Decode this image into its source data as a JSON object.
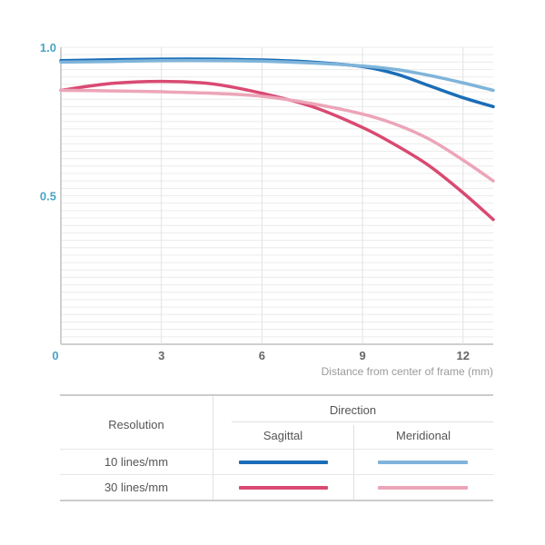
{
  "chart_data": {
    "type": "line",
    "xlabel": "Distance from center of frame (mm)",
    "ylabel": "",
    "xlim": [
      0,
      12.9
    ],
    "ylim": [
      0,
      1.0
    ],
    "x_ticks": [
      "0",
      "3",
      "6",
      "9",
      "12"
    ],
    "y_ticks": [
      "0.5",
      "1.0"
    ],
    "grid": "horizontal",
    "series": [
      {
        "id": "s10",
        "color": "#1a6db8",
        "x": [
          0,
          1.5,
          3,
          4.5,
          6,
          7.5,
          9,
          10,
          11,
          12,
          12.9
        ],
        "y": [
          0.955,
          0.958,
          0.96,
          0.96,
          0.957,
          0.95,
          0.935,
          0.91,
          0.87,
          0.83,
          0.8
        ]
      },
      {
        "id": "m10",
        "color": "#7fb4da",
        "x": [
          0,
          1.5,
          3,
          4.5,
          6,
          7.5,
          9,
          10,
          11,
          12,
          12.9
        ],
        "y": [
          0.95,
          0.952,
          0.955,
          0.955,
          0.953,
          0.947,
          0.937,
          0.925,
          0.905,
          0.88,
          0.855
        ]
      },
      {
        "id": "s30",
        "color": "#d94a72",
        "x": [
          0,
          1.5,
          3,
          4.5,
          6,
          7.5,
          9,
          10,
          11,
          12,
          12.9
        ],
        "y": [
          0.855,
          0.878,
          0.885,
          0.877,
          0.845,
          0.8,
          0.73,
          0.67,
          0.6,
          0.51,
          0.42
        ]
      },
      {
        "id": "m30",
        "color": "#eca5b8",
        "x": [
          0,
          1.5,
          3,
          4.5,
          6,
          7.5,
          9,
          10,
          11,
          12,
          12.9
        ],
        "y": [
          0.855,
          0.853,
          0.85,
          0.845,
          0.835,
          0.81,
          0.775,
          0.74,
          0.69,
          0.62,
          0.55
        ]
      }
    ]
  },
  "table": {
    "resolution_header": "Resolution",
    "direction_header": "Direction",
    "sagittal_header": "Sagittal",
    "meridional_header": "Meridional",
    "rows": [
      {
        "label": "10 lines/mm",
        "sagittal_color": "#1a6db8",
        "meridional_color": "#7fb4da"
      },
      {
        "label": "30 lines/mm",
        "sagittal_color": "#d94a72",
        "meridional_color": "#eca5b8"
      }
    ]
  }
}
